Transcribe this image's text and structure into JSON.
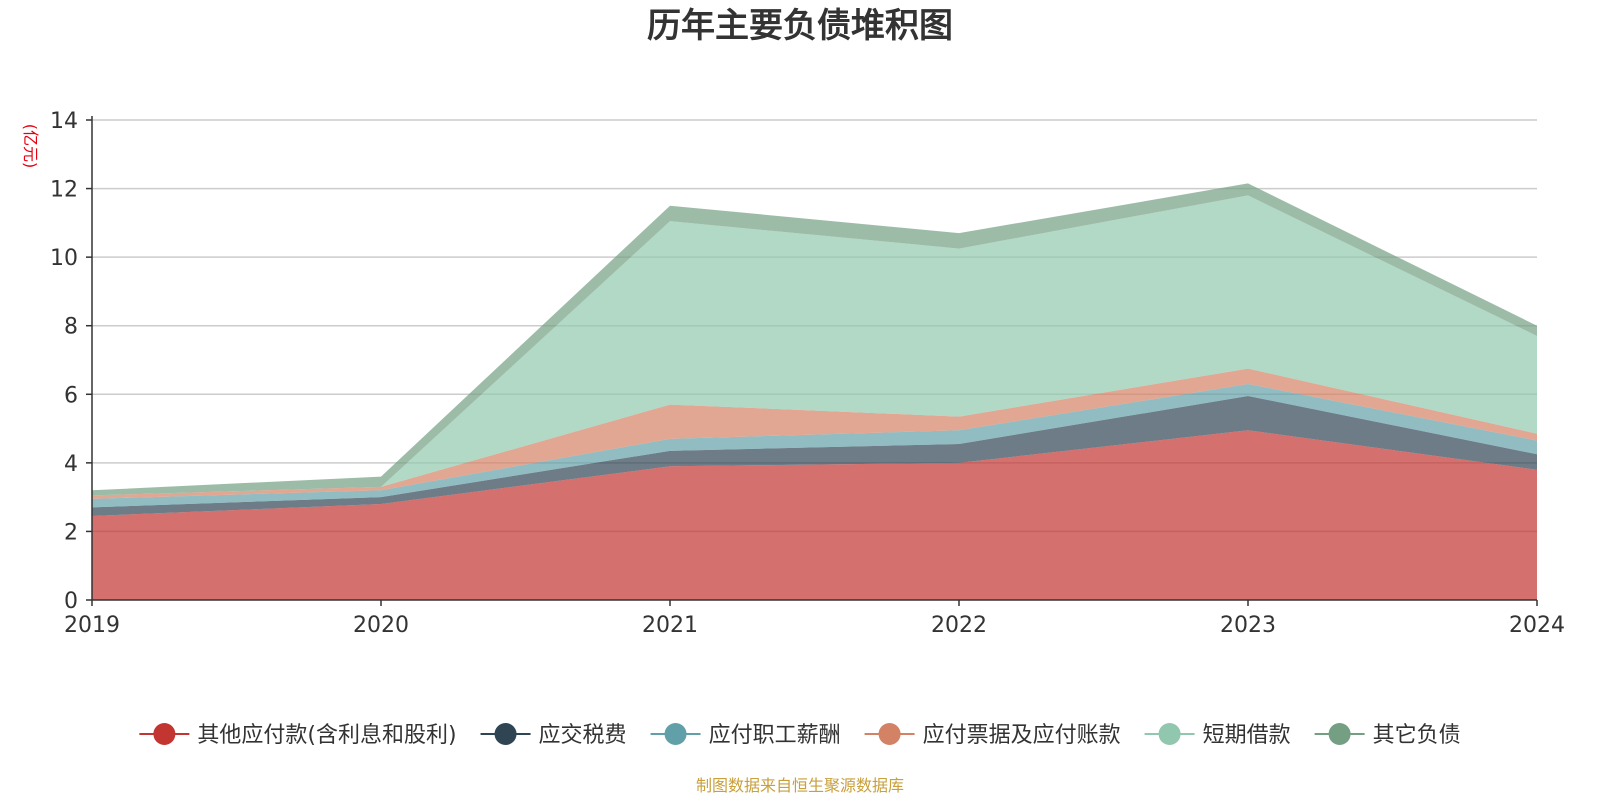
{
  "chart_data": {
    "type": "area",
    "stacked": true,
    "title": "历年主要负债堆积图",
    "unit_label": "(亿元)",
    "source": "制图数据来自恒生聚源数据库",
    "x": [
      "2019",
      "2020",
      "2021",
      "2022",
      "2023",
      "2024"
    ],
    "ylim": [
      0,
      14
    ],
    "yticks": [
      0,
      2,
      4,
      6,
      8,
      10,
      12,
      14
    ],
    "grid": true,
    "legend_position": "bottom",
    "series": [
      {
        "name": "其他应付款(含利息和股利)",
        "color": "#c23531",
        "values": [
          2.45,
          2.8,
          3.9,
          4.0,
          4.95,
          3.8
        ]
      },
      {
        "name": "应交税费",
        "color": "#2f4554",
        "values": [
          0.25,
          0.2,
          0.45,
          0.55,
          1.0,
          0.45
        ]
      },
      {
        "name": "应付职工薪酬",
        "color": "#61a0a8",
        "values": [
          0.25,
          0.2,
          0.35,
          0.4,
          0.35,
          0.4
        ]
      },
      {
        "name": "应付票据及应付账款",
        "color": "#d48265",
        "values": [
          0.1,
          0.1,
          1.0,
          0.4,
          0.45,
          0.2
        ]
      },
      {
        "name": "短期借款",
        "color": "#91c7ae",
        "values": [
          0.0,
          0.0,
          5.35,
          4.9,
          5.05,
          2.85
        ]
      },
      {
        "name": "其它负债",
        "color": "#749f83",
        "values": [
          0.15,
          0.3,
          0.45,
          0.45,
          0.35,
          0.3
        ]
      }
    ]
  }
}
